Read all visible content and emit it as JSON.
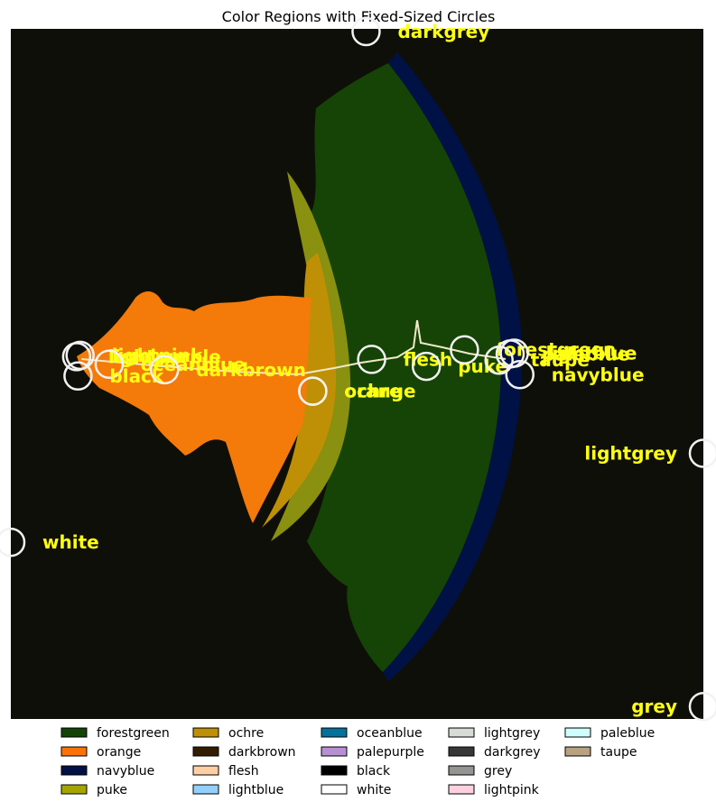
{
  "chart_data": {
    "type": "scatter",
    "title": "Color Regions with Fixed-Sized Circles",
    "xlabel": "",
    "ylabel": "",
    "grid": false,
    "background_color": "#0f0f0a",
    "label_color": "#ffff14",
    "circle_color": "#f2f2f2",
    "legend_placement": "bottom",
    "legend_columns": 5,
    "circles": [
      {
        "name": "darkgrey",
        "x": 0.513,
        "y": 0.996
      },
      {
        "name": "lightgrey",
        "x": 1.0,
        "y": 0.385
      },
      {
        "name": "white",
        "x": 0.0,
        "y": 0.256
      },
      {
        "name": "grey",
        "x": 1.0,
        "y": 0.018
      },
      {
        "name": "lightpurple",
        "x": 0.095,
        "y": 0.525
      },
      {
        "name": "lightpink",
        "x": 0.1,
        "y": 0.527
      },
      {
        "name": "oceanblue",
        "x": 0.142,
        "y": 0.514
      },
      {
        "name": "black",
        "x": 0.097,
        "y": 0.497
      },
      {
        "name": "darkbrown",
        "x": 0.222,
        "y": 0.506
      },
      {
        "name": "orange",
        "x": 0.436,
        "y": 0.475
      },
      {
        "name": "ochre",
        "x": 0.436,
        "y": 0.475
      },
      {
        "name": "flesh",
        "x": 0.521,
        "y": 0.521
      },
      {
        "name": "puke",
        "x": 0.6,
        "y": 0.511
      },
      {
        "name": "forestgreen",
        "x": 0.655,
        "y": 0.535
      },
      {
        "name": "paleblue",
        "x": 0.721,
        "y": 0.529
      },
      {
        "name": "lightblue",
        "x": 0.727,
        "y": 0.53
      },
      {
        "name": "taupe",
        "x": 0.705,
        "y": 0.52
      },
      {
        "name": "navyblue",
        "x": 0.735,
        "y": 0.499
      }
    ],
    "legend": [
      {
        "name": "forestgreen",
        "color": "#154406"
      },
      {
        "name": "orange",
        "color": "#f97306"
      },
      {
        "name": "navyblue",
        "color": "#001146"
      },
      {
        "name": "puke",
        "color": "#a5a502"
      },
      {
        "name": "ochre",
        "color": "#bf9005"
      },
      {
        "name": "darkbrown",
        "color": "#341c02"
      },
      {
        "name": "flesh",
        "color": "#ffcfa4"
      },
      {
        "name": "lightblue",
        "color": "#95d0fc"
      },
      {
        "name": "oceanblue",
        "color": "#03719c"
      },
      {
        "name": "palepurple",
        "color": "#b790d4"
      },
      {
        "name": "black",
        "color": "#000000"
      },
      {
        "name": "white",
        "color": "#ffffff"
      },
      {
        "name": "lightgrey",
        "color": "#d8dcd6"
      },
      {
        "name": "darkgrey",
        "color": "#363737"
      },
      {
        "name": "grey",
        "color": "#929591"
      },
      {
        "name": "lightpink",
        "color": "#ffd1df"
      },
      {
        "name": "paleblue",
        "color": "#d0fefe"
      },
      {
        "name": "taupe",
        "color": "#b9a281"
      }
    ]
  }
}
